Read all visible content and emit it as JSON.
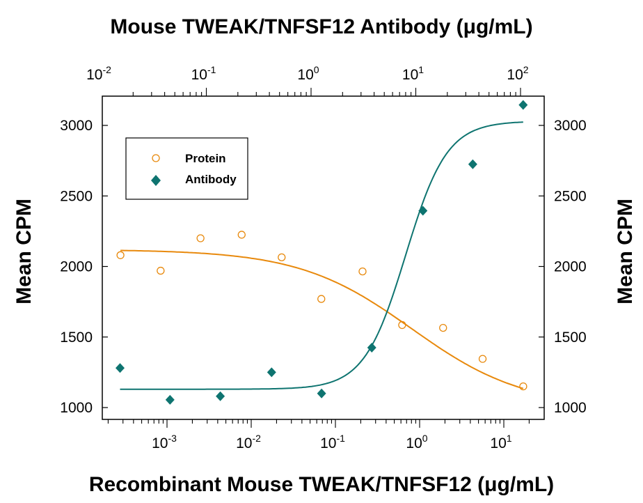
{
  "chart_data": {
    "type": "scatter",
    "top_title": "Mouse TWEAK/TNFSF12 Antibody (μg/mL)",
    "xlabel": "Recombinant Mouse TWEAK/TNFSF12 (μg/mL)",
    "ylabel": "Mean CPM",
    "ylabel_right": "Mean CPM",
    "x_scale": "log",
    "bottom_xlim": [
      0.0002,
      40
    ],
    "top_xlim": [
      0.01,
      130
    ],
    "ylim": [
      1000,
      3200
    ],
    "y_ticks": [
      1000,
      1500,
      2000,
      2500,
      3000
    ],
    "bottom_x_ticks": [
      {
        "base": "10",
        "exp": "-3"
      },
      {
        "base": "10",
        "exp": "-2"
      },
      {
        "base": "10",
        "exp": "-1"
      },
      {
        "base": "10",
        "exp": "0"
      },
      {
        "base": "10",
        "exp": "1"
      }
    ],
    "top_x_ticks": [
      {
        "base": "10",
        "exp": "-2"
      },
      {
        "base": "10",
        "exp": "-1"
      },
      {
        "base": "10",
        "exp": "0"
      },
      {
        "base": "10",
        "exp": "1"
      },
      {
        "base": "10",
        "exp": "2"
      }
    ],
    "grid": false,
    "legend_placement": "top-left",
    "series": [
      {
        "name": "Protein",
        "axis": "bottom",
        "marker": "open-circle",
        "color": "#E8890C",
        "x": [
          0.00028,
          0.00084,
          0.0025,
          0.0077,
          0.023,
          0.068,
          0.21,
          0.62,
          1.9,
          5.6,
          17
        ],
        "y": [
          2080,
          1970,
          2200,
          2225,
          2065,
          1770,
          1965,
          1585,
          1565,
          1345,
          1150
        ]
      },
      {
        "name": "Antibody",
        "axis": "top",
        "marker": "filled-diamond",
        "color": "#0E7470",
        "x": [
          0.015,
          0.045,
          0.136,
          0.42,
          1.26,
          3.8,
          11.7,
          35,
          106
        ],
        "y": [
          1280,
          1055,
          1080,
          1250,
          1100,
          1425,
          2395,
          2725,
          3145
        ]
      }
    ]
  }
}
